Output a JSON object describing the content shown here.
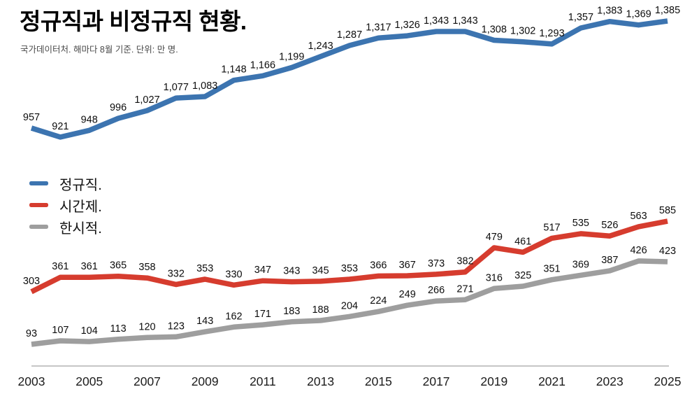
{
  "header": {
    "title": "정규직과 비정규직 현황.",
    "subtitle": "국가데이터처. 해마다 8월 기준. 단위: 만 명."
  },
  "legend": {
    "position": "middle-left",
    "items": [
      {
        "key": "regular",
        "label": "정규직.",
        "color": "#3C74B0"
      },
      {
        "key": "parttime",
        "label": "시간제.",
        "color": "#D63C2E"
      },
      {
        "key": "temporary",
        "label": "한시적.",
        "color": "#9E9E9E"
      }
    ]
  },
  "chart_data": {
    "type": "line",
    "title": "정규직과 비정규직 현황.",
    "subtitle": "국가데이터처. 해마다 8월 기준. 단위: 만 명.",
    "unit": "만 명",
    "x": [
      2003,
      2004,
      2005,
      2006,
      2007,
      2008,
      2009,
      2010,
      2011,
      2012,
      2013,
      2014,
      2015,
      2016,
      2017,
      2018,
      2019,
      2020,
      2021,
      2022,
      2023,
      2024,
      2025
    ],
    "x_tick_labels": [
      "2003",
      "2005",
      "2007",
      "2009",
      "2011",
      "2013",
      "2015",
      "2017",
      "2019",
      "2021",
      "2023",
      "2025"
    ],
    "xlim": [
      2003,
      2025
    ],
    "ylim": [
      93,
      1385
    ],
    "grid": false,
    "y_axis_shown": false,
    "value_labels_shown": true,
    "legend_position": "middle-left",
    "axis_line_color": "#b3b3b3",
    "series": [
      {
        "name": "정규직.",
        "key": "regular",
        "color": "#3C74B0",
        "values": [
          957,
          921,
          948,
          996,
          1027,
          1077,
          1083,
          1148,
          1166,
          1199,
          1243,
          1287,
          1317,
          1326,
          1343,
          1343,
          1308,
          1302,
          1293,
          1357,
          1383,
          1369,
          1385
        ],
        "display_values": [
          "957",
          "921",
          "948",
          "996",
          "1,027",
          "1,077",
          "1,083",
          "1,148",
          "1,166",
          "1,199",
          "1,243",
          "1,287",
          "1,317",
          "1,326",
          "1,343",
          "1,343",
          "1,308",
          "1,302",
          "1,293",
          "1,357",
          "1,383",
          "1,369",
          "1,385"
        ]
      },
      {
        "name": "시간제.",
        "key": "parttime",
        "color": "#D63C2E",
        "values": [
          303,
          361,
          361,
          365,
          358,
          332,
          353,
          330,
          347,
          343,
          345,
          353,
          366,
          367,
          373,
          382,
          479,
          461,
          517,
          535,
          526,
          563,
          585
        ],
        "display_values": [
          "303",
          "361",
          "361",
          "365",
          "358",
          "332",
          "353",
          "330",
          "347",
          "343",
          "345",
          "353",
          "366",
          "367",
          "373",
          "382",
          "479",
          "461",
          "517",
          "535",
          "526",
          "563",
          "585"
        ]
      },
      {
        "name": "한시적.",
        "key": "temporary",
        "color": "#9E9E9E",
        "values": [
          93,
          107,
          104,
          113,
          120,
          123,
          143,
          162,
          171,
          183,
          188,
          204,
          224,
          249,
          266,
          271,
          316,
          325,
          351,
          369,
          387,
          426,
          423
        ],
        "display_values": [
          "93",
          "107",
          "104",
          "113",
          "120",
          "123",
          "143",
          "162",
          "171",
          "183",
          "188",
          "204",
          "224",
          "249",
          "266",
          "271",
          "316",
          "325",
          "351",
          "369",
          "387",
          "426",
          "423"
        ]
      }
    ]
  }
}
